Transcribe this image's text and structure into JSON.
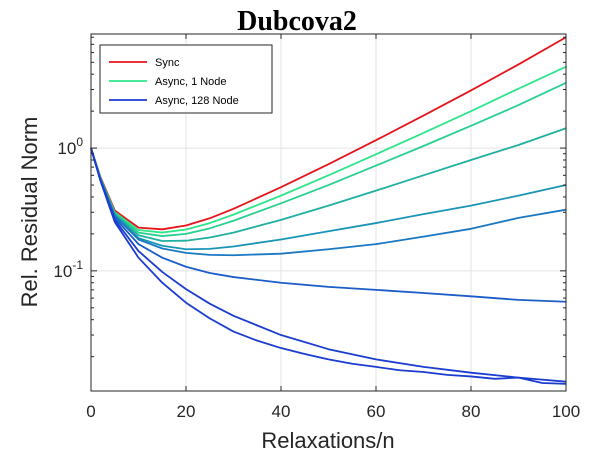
{
  "chart_data": {
    "type": "line",
    "title": "Dubcova2",
    "xlabel": "Relaxations/n",
    "ylabel": "Rel. Residual Norm",
    "xlim": [
      0,
      100
    ],
    "ylim": [
      0.0105,
      8.5
    ],
    "yscale": "log",
    "grid": true,
    "legend_position": "top-left",
    "x_ticks": [
      {
        "value": 0,
        "label": "0"
      },
      {
        "value": 20,
        "label": "20"
      },
      {
        "value": 40,
        "label": "40"
      },
      {
        "value": 60,
        "label": "60"
      },
      {
        "value": 80,
        "label": "80"
      },
      {
        "value": 100,
        "label": "100"
      }
    ],
    "y_ticks": [
      {
        "value": 1,
        "base": "10",
        "exp": "0"
      },
      {
        "value": 0.1,
        "base": "10",
        "exp": "-1"
      }
    ],
    "legend": [
      {
        "label": "Sync",
        "color": "#e5141b"
      },
      {
        "label": "Async, 1 Node",
        "color": "#2ee58a"
      },
      {
        "label": "Async, 128 Node",
        "color": "#1a3ccf"
      }
    ],
    "series": [
      {
        "name": "Sync",
        "color": "#e5141b",
        "x": [
          0,
          2,
          5,
          10,
          15,
          20,
          25,
          30,
          40,
          50,
          60,
          70,
          80,
          90,
          100
        ],
        "y": [
          1.0,
          0.58,
          0.31,
          0.225,
          0.218,
          0.234,
          0.268,
          0.32,
          0.48,
          0.74,
          1.16,
          1.84,
          2.95,
          4.8,
          8.0
        ]
      },
      {
        "color": "#2ee58a",
        "x": [
          0,
          2,
          5,
          10,
          15,
          20,
          25,
          30,
          40,
          50,
          60,
          70,
          80,
          90,
          100
        ],
        "y": [
          1.0,
          0.57,
          0.3,
          0.215,
          0.205,
          0.217,
          0.245,
          0.287,
          0.41,
          0.6,
          0.89,
          1.33,
          2.0,
          3.05,
          4.6
        ]
      },
      {
        "color": "#29cf8f",
        "x": [
          0,
          2,
          5,
          10,
          15,
          20,
          25,
          30,
          40,
          50,
          60,
          70,
          80,
          90,
          100
        ],
        "y": [
          1.0,
          0.57,
          0.295,
          0.205,
          0.192,
          0.2,
          0.222,
          0.256,
          0.355,
          0.5,
          0.72,
          1.04,
          1.52,
          2.24,
          3.4
        ]
      },
      {
        "color": "#1eb0a0",
        "x": [
          0,
          2,
          5,
          10,
          15,
          20,
          25,
          30,
          40,
          50,
          60,
          70,
          80,
          90,
          100
        ],
        "y": [
          1.0,
          0.565,
          0.29,
          0.195,
          0.175,
          0.176,
          0.187,
          0.205,
          0.26,
          0.34,
          0.45,
          0.6,
          0.8,
          1.06,
          1.45
        ]
      },
      {
        "color": "#1a95b5",
        "x": [
          0,
          2,
          5,
          10,
          15,
          20,
          25,
          30,
          40,
          50,
          60,
          70,
          80,
          90,
          100
        ],
        "y": [
          1.0,
          0.56,
          0.285,
          0.185,
          0.16,
          0.15,
          0.151,
          0.158,
          0.18,
          0.21,
          0.245,
          0.29,
          0.34,
          0.41,
          0.5
        ]
      },
      {
        "color": "#1a78c2",
        "x": [
          0,
          2,
          5,
          10,
          15,
          20,
          25,
          30,
          40,
          50,
          60,
          70,
          80,
          90,
          100
        ],
        "y": [
          1.0,
          0.555,
          0.28,
          0.18,
          0.152,
          0.14,
          0.135,
          0.134,
          0.138,
          0.15,
          0.165,
          0.19,
          0.22,
          0.27,
          0.315
        ]
      },
      {
        "color": "#1a5cc8",
        "x": [
          0,
          2,
          5,
          10,
          15,
          20,
          25,
          30,
          40,
          50,
          60,
          70,
          80,
          90,
          100
        ],
        "y": [
          1.0,
          0.55,
          0.27,
          0.165,
          0.128,
          0.108,
          0.096,
          0.089,
          0.08,
          0.074,
          0.07,
          0.066,
          0.062,
          0.058,
          0.056
        ]
      },
      {
        "name": "Async, 128 Node",
        "color": "#1a3ccf",
        "x": [
          0,
          2,
          5,
          10,
          15,
          20,
          25,
          30,
          40,
          50,
          60,
          70,
          80,
          90,
          100
        ],
        "y": [
          1.0,
          0.545,
          0.26,
          0.145,
          0.098,
          0.071,
          0.054,
          0.043,
          0.03,
          0.023,
          0.019,
          0.0165,
          0.0148,
          0.0135,
          0.0125
        ]
      },
      {
        "color": "#1a3ccf",
        "x": [
          0,
          2,
          5,
          10,
          15,
          20,
          25,
          30,
          35,
          40,
          45,
          50,
          55,
          60,
          65,
          70,
          75,
          80,
          85,
          90,
          95,
          100
        ],
        "y": [
          1.0,
          0.54,
          0.25,
          0.128,
          0.08,
          0.055,
          0.041,
          0.032,
          0.027,
          0.0235,
          0.021,
          0.019,
          0.0175,
          0.0165,
          0.0155,
          0.015,
          0.0142,
          0.0138,
          0.0132,
          0.0135,
          0.0122,
          0.012
        ]
      }
    ]
  }
}
